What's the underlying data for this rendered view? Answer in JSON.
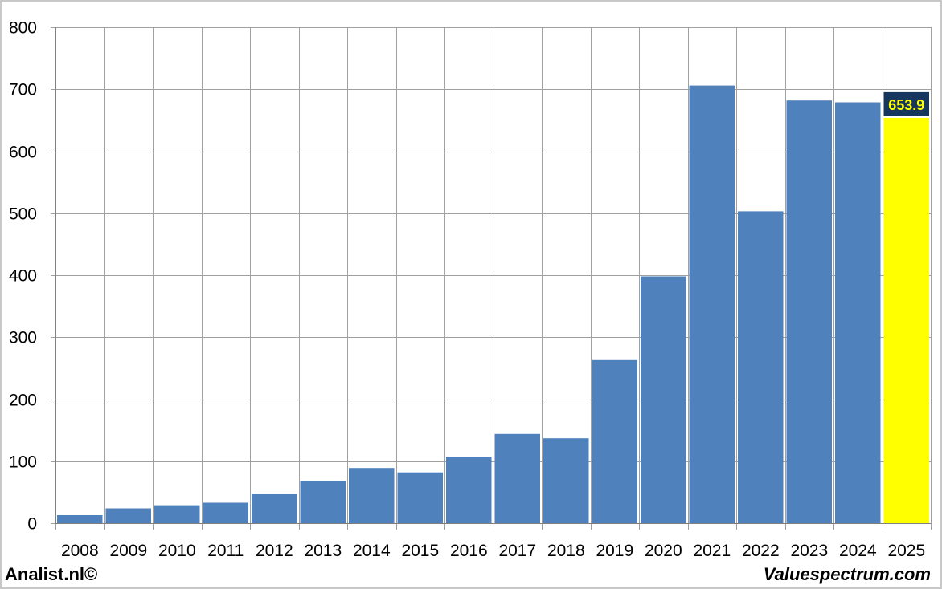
{
  "chart_data": {
    "type": "bar",
    "categories": [
      "2008",
      "2009",
      "2010",
      "2011",
      "2012",
      "2013",
      "2014",
      "2015",
      "2016",
      "2017",
      "2018",
      "2019",
      "2020",
      "2021",
      "2022",
      "2023",
      "2024",
      "2025"
    ],
    "values": [
      13,
      24,
      29,
      33,
      47,
      68,
      89,
      82,
      107,
      144,
      137,
      263,
      398,
      706,
      503,
      682,
      679,
      653.9
    ],
    "highlight": {
      "index": 17,
      "label": "653.9"
    },
    "title": "",
    "xlabel": "",
    "ylabel": "",
    "ylim": [
      0,
      800
    ],
    "yticks": [
      0,
      100,
      200,
      300,
      400,
      500,
      600,
      700,
      800
    ],
    "grid": true,
    "colors": {
      "bar": "#4f81bd",
      "highlight_bar": "#ffff00",
      "label_bg": "#17365d",
      "label_text": "#ffff00",
      "grid": "#a0a0a0"
    }
  },
  "footer": {
    "source_left": "Analist.nl©",
    "source_right": "Valuespectrum.com"
  }
}
